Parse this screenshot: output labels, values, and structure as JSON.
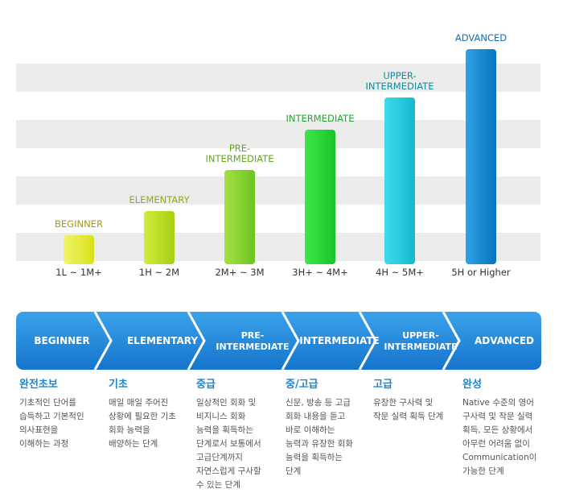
{
  "chart_data": {
    "type": "bar",
    "categories": [
      "1L ~ 1M+",
      "1H ~ 2M",
      "2M+ ~ 3M",
      "3H+ ~ 4M+",
      "4H ~ 5M+",
      "5H or Higher"
    ],
    "values": [
      1,
      2,
      3,
      4,
      5,
      6
    ],
    "data_labels": [
      "BEGINNER",
      "ELEMENTARY",
      "PRE-\nINTERMEDIATE",
      "INTERMEDIATE",
      "UPPER-\nINTERMEDIATE",
      "ADVANCED"
    ],
    "ylim": [
      0,
      7.5
    ],
    "grid": "horizontal bands",
    "bar_colors": [
      [
        "#f2f56a",
        "#d8e01a"
      ],
      [
        "#d2ec3a",
        "#a6cf14"
      ],
      [
        "#a5e043",
        "#6cc521"
      ],
      [
        "#3fe64a",
        "#19c428"
      ],
      [
        "#3fdcea",
        "#13b9cf"
      ],
      [
        "#2ea3e6",
        "#0a73be"
      ]
    ],
    "label_colors": [
      "#a39a1a",
      "#8eae13",
      "#62a81c",
      "#21a52a",
      "#138a99",
      "#1a6aa8"
    ]
  },
  "process": {
    "steps": [
      "BEGINNER",
      "ELEMENTARY",
      "PRE-\nINTERMEDIATE",
      "INTERMEDIATE",
      "UPPER-\nINTERMEDIATE",
      "ADVANCED"
    ],
    "colors": {
      "top": "#3aa2ea",
      "bottom": "#1674cc",
      "text": "#ffffff"
    }
  },
  "descriptions": [
    {
      "title": "완전초보",
      "text": "기초적인 단어를\n습득하고 기본적인\n의사표현을\n이해하는 과정"
    },
    {
      "title": "기초",
      "text": "매일 매일 주어진\n상황에 필요한 기초\n회화 능력을\n배양하는 단계"
    },
    {
      "title": "중급",
      "text": "일상적인 회화 및\n비지니스 회화\n능력을 획득하는\n단계로서 보통에서\n고급단계까지\n자연스럽게 구사할\n수 있는 단계"
    },
    {
      "title": "중/고급",
      "text": "신문, 방송 등 고급\n회화 내용을 듣고\n바로 이해하는\n능력과 유창한 회화\n능력을 획득하는\n단계"
    },
    {
      "title": "고급",
      "text": "유창한 구사력 및\n작문 실력 획득 단계"
    },
    {
      "title": "완성",
      "text": "Native 수준의 영어\n구사력 및 작문 실력\n획득, 모든 상황에서\n아무런 어려움 없이\nCommunication이\n가능한 단계"
    }
  ]
}
